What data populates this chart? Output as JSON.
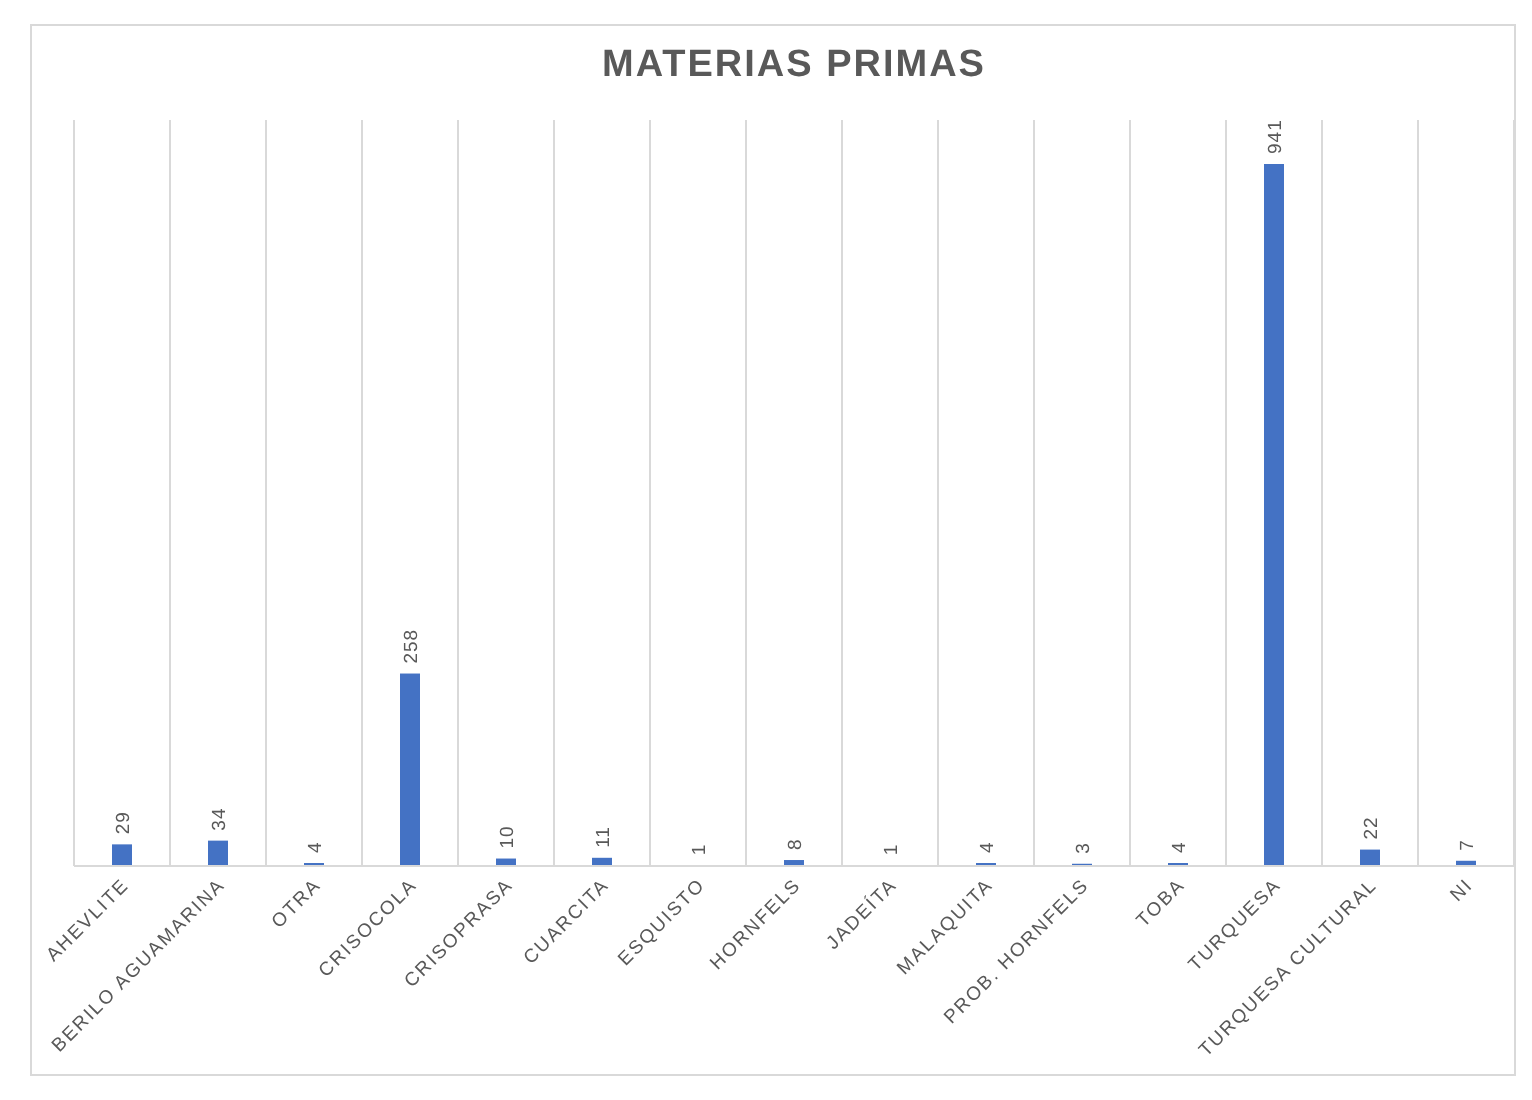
{
  "chart_data": {
    "type": "bar",
    "title": "MATERIAS PRIMAS",
    "categories": [
      "AHEVLITE",
      "BERILO AGUAMARINA",
      "OTRA",
      "CRISOCOLA",
      "CRISOPRASA",
      "CUARCITA",
      "ESQUISTO",
      "HORNFELS",
      "JADEÍTA",
      "MALAQUITA",
      "PROB. HORNFELS",
      "TOBA",
      "TURQUESA",
      "TURQUESA CULTURAL",
      "NI"
    ],
    "values": [
      29,
      34,
      4,
      258,
      10,
      11,
      1,
      8,
      1,
      4,
      3,
      4,
      941,
      22,
      7
    ],
    "color": "#4472c4",
    "data_labels": true,
    "grid": "x"
  }
}
